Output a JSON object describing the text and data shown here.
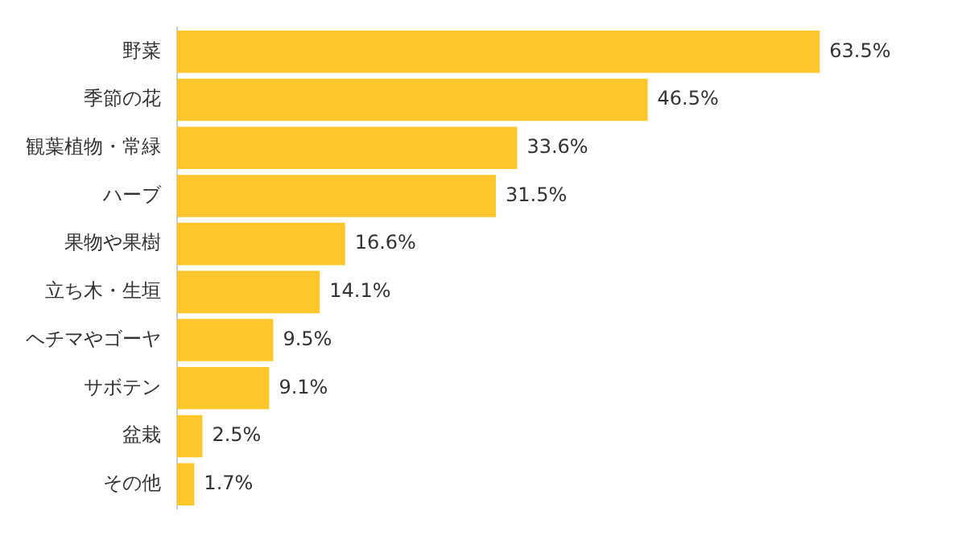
{
  "chart_data": {
    "type": "bar",
    "orientation": "horizontal",
    "categories": [
      "野菜",
      "季節の花",
      "観葉植物・常緑",
      "ハーブ",
      "果物や果樹",
      "立ち木・生垣",
      "ヘチマやゴーヤ",
      "サボテン",
      "盆栽",
      "その他"
    ],
    "values": [
      63.5,
      46.5,
      33.6,
      31.5,
      16.6,
      14.1,
      9.5,
      9.1,
      2.5,
      1.7
    ],
    "value_labels": [
      "63.5%",
      "46.5%",
      "33.6%",
      "31.5%",
      "16.6%",
      "14.1%",
      "9.5%",
      "9.1%",
      "2.5%",
      "1.7%"
    ],
    "color": "#ffc72c",
    "tick_labels": "y",
    "grid": false,
    "legend": false
  }
}
